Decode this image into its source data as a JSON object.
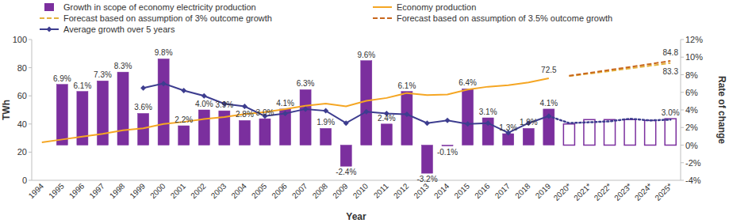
{
  "chart_data": {
    "type": "bar",
    "x_label": "Year",
    "y_label": "TWh",
    "y2_label": "Rate of change",
    "categories": [
      "1994",
      "1995",
      "1996",
      "1997",
      "1998",
      "1999",
      "2000",
      "2001",
      "2002",
      "2003",
      "2004",
      "2005",
      "2006",
      "2007",
      "2008",
      "2009",
      "2010",
      "2011",
      "2012",
      "2013",
      "2014",
      "2015",
      "2016",
      "2017",
      "2018",
      "2019",
      "2020*",
      "2021*",
      "2022*",
      "2023*",
      "2024*",
      "2025*"
    ],
    "ylim": [
      0,
      100
    ],
    "yticks": [
      0,
      20,
      40,
      60,
      80,
      100
    ],
    "y2lim": [
      -4,
      12
    ],
    "y2ticks": [
      {
        "value": -4,
        "label": "-4%"
      },
      {
        "value": -2,
        "label": "-2%"
      },
      {
        "value": 0,
        "label": "0%"
      },
      {
        "value": 2,
        "label": "2%"
      },
      {
        "value": 4,
        "label": "4%"
      },
      {
        "value": 6,
        "label": "6%"
      },
      {
        "value": 8,
        "label": "8%"
      },
      {
        "value": 10,
        "label": "10%"
      },
      {
        "value": 12,
        "label": "12%"
      }
    ],
    "grid": false,
    "legend": "top",
    "data_labels": true,
    "series": [
      {
        "name": "Growth in scope of economy electricity production",
        "type": "bar",
        "axis": "y2",
        "color": "#7b2f9e",
        "values": [
          null,
          6.9,
          6.1,
          7.3,
          8.3,
          3.6,
          9.8,
          2.2,
          4.0,
          3.9,
          2.8,
          3.0,
          4.1,
          6.3,
          1.9,
          -2.4,
          9.6,
          2.4,
          6.1,
          -3.2,
          -0.1,
          6.4,
          3.1,
          1.3,
          1.9,
          4.1,
          2.4,
          2.9,
          2.9,
          2.9,
          2.8,
          3.0
        ],
        "value_labels": [
          null,
          "6.9%",
          "6.1%",
          "7.3%",
          "8.3%",
          "3.6%",
          "9.8%",
          "2.2%",
          "4.0%",
          "3.9%",
          "2.8%",
          "3.0%",
          "4.1%",
          "6.3%",
          "1.9%",
          "-2.4%",
          "9.6%",
          "2.4%",
          "6.1%",
          "-3.2%",
          "-0.1%",
          "6.4%",
          "3.1%",
          "1.3%",
          "1.9%",
          "4.1%",
          null,
          null,
          null,
          null,
          null,
          "3.0%"
        ]
      },
      {
        "name": "Economy production",
        "type": "line",
        "color": "#f5a623",
        "line_style": "solid",
        "values": [
          27,
          29,
          31,
          33,
          35.5,
          37,
          40,
          41.5,
          43.5,
          45,
          47,
          48.5,
          50.5,
          53,
          54.5,
          52.5,
          56.5,
          58.5,
          62,
          60.5,
          61,
          64.5,
          66.5,
          67.5,
          69.5,
          72.5,
          null,
          null,
          null,
          null,
          null,
          null
        ],
        "value_labels": [
          null,
          null,
          null,
          null,
          null,
          null,
          null,
          null,
          null,
          null,
          null,
          null,
          null,
          null,
          null,
          null,
          null,
          null,
          null,
          null,
          null,
          null,
          null,
          null,
          null,
          "72.5",
          null,
          null,
          null,
          null,
          null,
          null
        ]
      },
      {
        "name": "Forecast based on assumption of 3% outcome growth",
        "type": "line",
        "color": "#e3b23c",
        "line_style": "dashed",
        "values": [
          null,
          null,
          null,
          null,
          null,
          null,
          null,
          null,
          null,
          null,
          null,
          null,
          null,
          null,
          null,
          null,
          null,
          null,
          null,
          null,
          null,
          null,
          null,
          null,
          null,
          null,
          74.0,
          75.8,
          77.6,
          79.5,
          81.4,
          83.3
        ],
        "value_labels": [
          null,
          null,
          null,
          null,
          null,
          null,
          null,
          null,
          null,
          null,
          null,
          null,
          null,
          null,
          null,
          null,
          null,
          null,
          null,
          null,
          null,
          null,
          null,
          null,
          null,
          null,
          null,
          null,
          null,
          null,
          null,
          "83.3"
        ]
      },
      {
        "name": "Forecast based on assumption of 3.5% outcome growth",
        "type": "line",
        "color": "#c8661c",
        "line_style": "dashed",
        "values": [
          null,
          null,
          null,
          null,
          null,
          null,
          null,
          null,
          null,
          null,
          null,
          null,
          null,
          null,
          null,
          null,
          null,
          null,
          null,
          null,
          null,
          null,
          null,
          null,
          null,
          null,
          74.3,
          76.3,
          78.4,
          80.5,
          82.6,
          84.8
        ],
        "value_labels": [
          null,
          null,
          null,
          null,
          null,
          null,
          null,
          null,
          null,
          null,
          null,
          null,
          null,
          null,
          null,
          null,
          null,
          null,
          null,
          null,
          null,
          null,
          null,
          null,
          null,
          null,
          null,
          null,
          null,
          null,
          null,
          "84.8"
        ]
      },
      {
        "name": "Average growth over 5 years",
        "type": "line",
        "axis": "y2",
        "color": "#3d3d8f",
        "line_style": "solid",
        "marker": "diamond",
        "values": [
          null,
          null,
          null,
          null,
          null,
          6.5,
          7.0,
          6.2,
          5.6,
          4.7,
          4.4,
          3.3,
          3.6,
          4.1,
          3.9,
          2.5,
          3.8,
          3.6,
          3.5,
          2.5,
          2.8,
          2.4,
          2.5,
          1.4,
          2.5,
          3.3,
          null,
          null,
          null,
          null,
          null,
          null
        ]
      },
      {
        "type": "line",
        "axis": "y2",
        "color": "#3d3d8f",
        "line_style": "dotted",
        "marker": "diamond",
        "values": [
          null,
          null,
          null,
          null,
          null,
          null,
          null,
          null,
          null,
          null,
          null,
          null,
          null,
          null,
          null,
          null,
          null,
          null,
          null,
          null,
          null,
          null,
          null,
          null,
          null,
          3.3,
          2.5,
          2.6,
          2.7,
          3.0,
          2.8,
          2.9
        ]
      }
    ]
  }
}
